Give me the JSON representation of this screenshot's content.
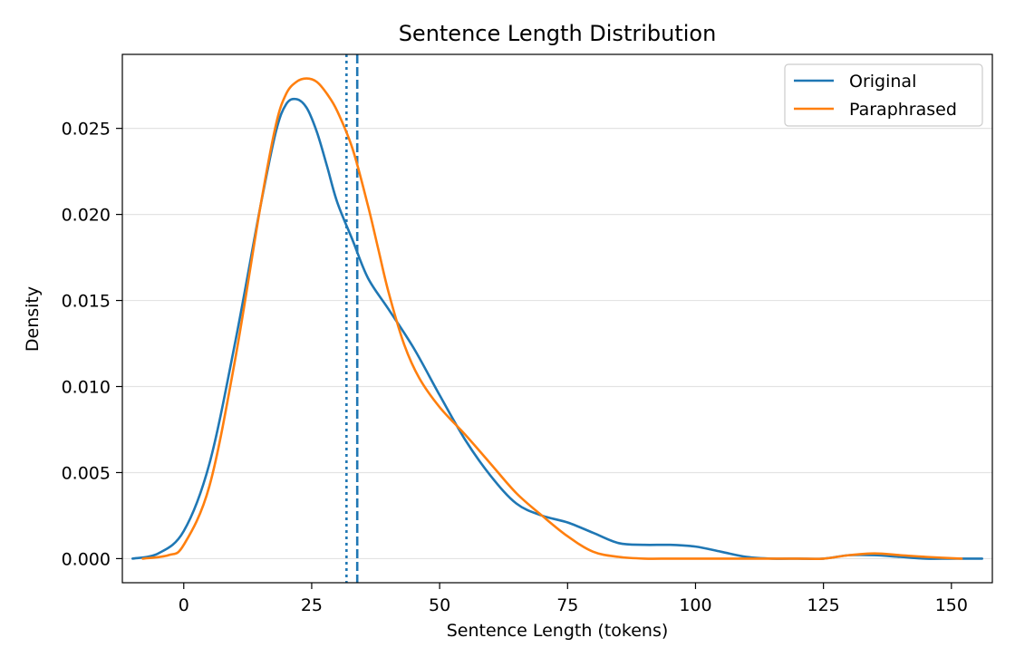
{
  "chart_data": {
    "type": "line",
    "title": "Sentence Length Distribution",
    "xlabel": "Sentence Length (tokens)",
    "ylabel": "Density",
    "xlim": [
      -12,
      158
    ],
    "ylim": [
      -0.0014,
      0.0293
    ],
    "x_ticks": [
      0,
      25,
      50,
      75,
      100,
      125,
      150
    ],
    "x_tick_labels": [
      "0",
      "25",
      "50",
      "75",
      "100",
      "125",
      "150"
    ],
    "y_ticks": [
      0,
      0.005,
      0.01,
      0.015,
      0.02,
      0.025
    ],
    "y_tick_labels": [
      "0.000",
      "0.005",
      "0.010",
      "0.015",
      "0.020",
      "0.025"
    ],
    "grid": "horizontal",
    "legend": "top-right",
    "series": [
      {
        "name": "Original",
        "color": "#1f77b4",
        "x": [
          -10,
          -5,
          0,
          5,
          10,
          15,
          18,
          20,
          22,
          24,
          26,
          28,
          30,
          33,
          36,
          40,
          45,
          50,
          55,
          60,
          65,
          70,
          75,
          80,
          85,
          90,
          95,
          100,
          105,
          110,
          115,
          120,
          125,
          130,
          135,
          140,
          145,
          150,
          156
        ],
        "y": [
          0.0,
          0.0003,
          0.0016,
          0.0055,
          0.0125,
          0.0205,
          0.0248,
          0.0264,
          0.0267,
          0.0262,
          0.0248,
          0.0228,
          0.0207,
          0.0185,
          0.0163,
          0.0145,
          0.0122,
          0.0095,
          0.0069,
          0.0048,
          0.0032,
          0.0025,
          0.0021,
          0.0015,
          0.0009,
          0.0008,
          0.0008,
          0.0007,
          0.0004,
          0.0001,
          0.0,
          0.0,
          0.0,
          0.0002,
          0.0002,
          0.0001,
          0.0,
          0.0,
          0.0
        ]
      },
      {
        "name": "Paraphrased",
        "color": "#ff7f0e",
        "x": [
          -8,
          -3,
          0,
          5,
          10,
          15,
          18,
          20,
          22,
          24,
          26,
          28,
          30,
          33,
          36,
          38,
          40,
          43,
          46,
          50,
          55,
          60,
          65,
          70,
          75,
          80,
          85,
          90,
          95,
          100,
          110,
          120,
          125,
          130,
          135,
          140,
          145,
          152
        ],
        "y": [
          0.0,
          0.0002,
          0.0008,
          0.0042,
          0.0115,
          0.0205,
          0.0252,
          0.027,
          0.0277,
          0.0279,
          0.0277,
          0.027,
          0.026,
          0.0238,
          0.0205,
          0.018,
          0.0155,
          0.0125,
          0.0105,
          0.0088,
          0.0072,
          0.0055,
          0.0038,
          0.0025,
          0.0013,
          0.0004,
          0.0001,
          0.0,
          0.0,
          0.0,
          0.0,
          0.0,
          0.0,
          0.0002,
          0.0003,
          0.0002,
          0.0001,
          0.0
        ]
      }
    ],
    "reference_lines": [
      {
        "series": "Original",
        "style": "dotted",
        "x": 31.8,
        "color": "#1f77b4"
      },
      {
        "series": "Paraphrased",
        "style": "dashed",
        "x": 33.9,
        "color": "#1f77b4"
      }
    ]
  }
}
